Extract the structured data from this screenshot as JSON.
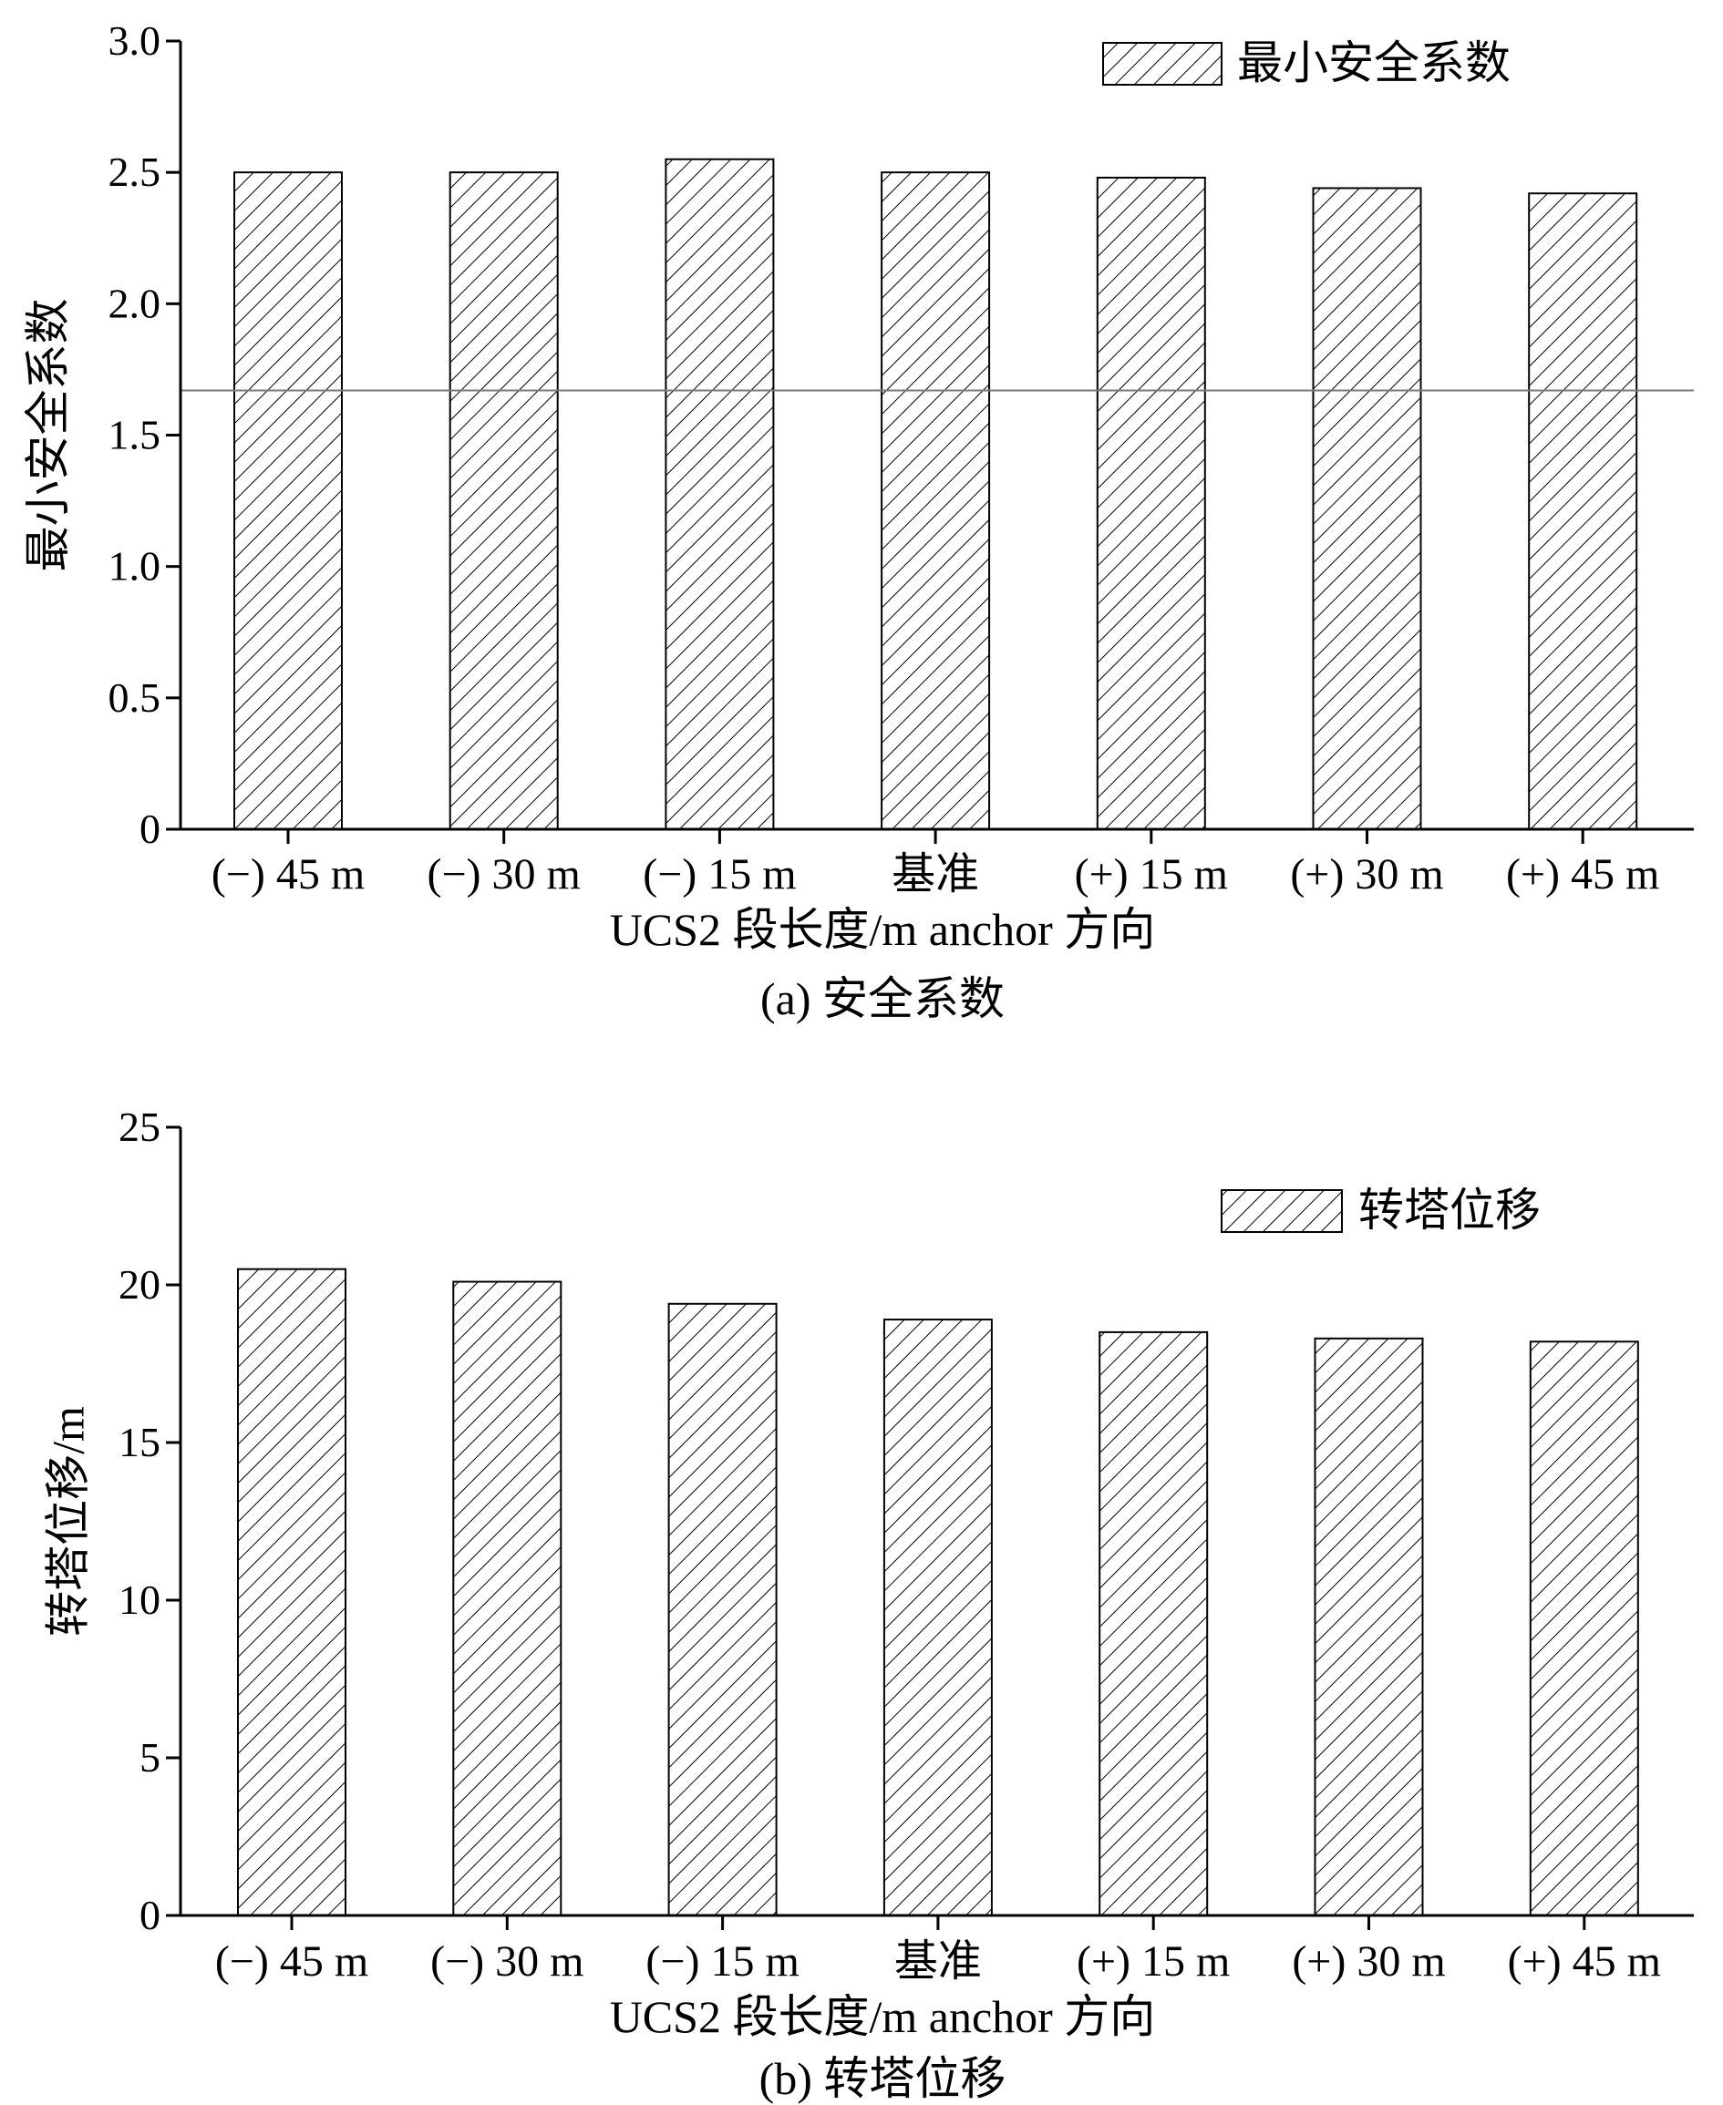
{
  "colors": {
    "axis": "#000000",
    "bar_fill": "#ffffff",
    "hatch": "#000000",
    "reference_line": "#7a7a7a",
    "background": "#ffffff"
  },
  "chart_data": [
    {
      "type": "bar",
      "caption": "(a) 安全系数",
      "xlabel": "UCS2 段长度/m anchor 方向",
      "ylabel": "最小安全系数",
      "categories": [
        "(−) 45 m",
        "(−) 30 m",
        "(−) 15 m",
        "基准",
        "(+) 15 m",
        "(+) 30 m",
        "(+) 45 m"
      ],
      "series": [
        {
          "name": "最小安全系数",
          "pattern": "diagonal-hatch",
          "values": [
            2.5,
            2.5,
            2.55,
            2.5,
            2.48,
            2.44,
            2.42
          ]
        }
      ],
      "ylim": [
        0,
        3.0
      ],
      "yticks": [
        0,
        0.5,
        1.0,
        1.5,
        2.0,
        2.5,
        3.0
      ],
      "ytick_labels": [
        "0",
        "0.5",
        "1.0",
        "1.5",
        "2.0",
        "2.5",
        "3.0"
      ],
      "reference_line": 1.67,
      "grid": false,
      "legend_position": "top-right"
    },
    {
      "type": "bar",
      "caption": "(b) 转塔位移",
      "xlabel": "UCS2 段长度/m anchor 方向",
      "ylabel": "转塔位移/m",
      "categories": [
        "(−) 45 m",
        "(−) 30 m",
        "(−) 15 m",
        "基准",
        "(+) 15 m",
        "(+) 30 m",
        "(+) 45 m"
      ],
      "series": [
        {
          "name": "转塔位移",
          "pattern": "diagonal-hatch",
          "values": [
            20.5,
            20.1,
            19.4,
            18.9,
            18.5,
            18.3,
            18.2
          ]
        }
      ],
      "ylim": [
        0,
        25
      ],
      "yticks": [
        0,
        5,
        10,
        15,
        20,
        25
      ],
      "ytick_labels": [
        "0",
        "5",
        "10",
        "15",
        "20",
        "25"
      ],
      "grid": false,
      "legend_position": "top-right"
    }
  ]
}
